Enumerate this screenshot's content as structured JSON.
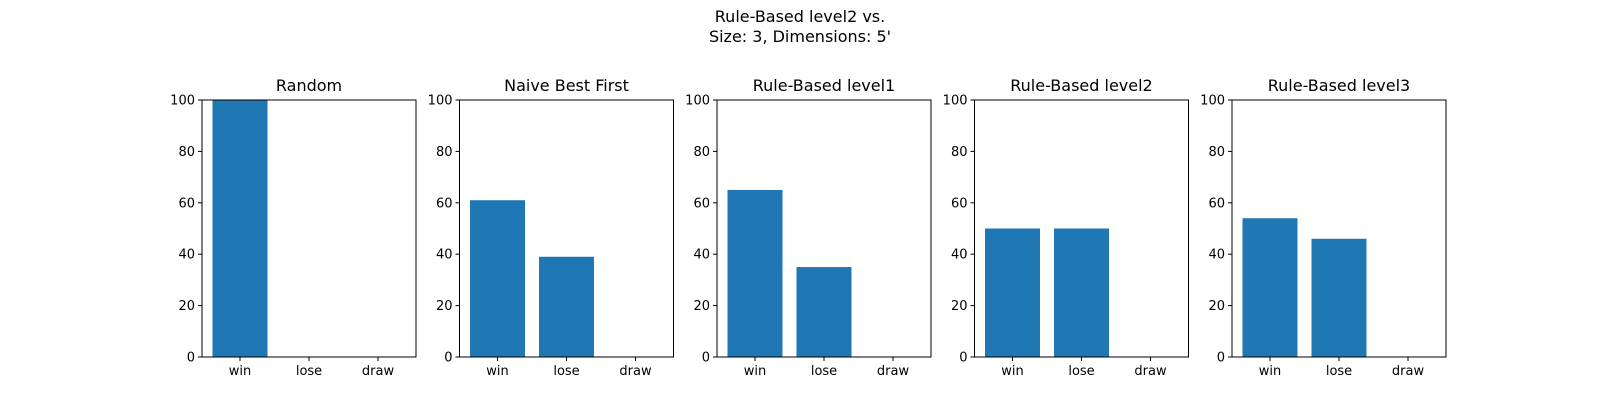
{
  "figure": {
    "title_line1": "Rule-Based level2 vs.",
    "title_line2": "Size: 3, Dimensions: 5'"
  },
  "chart_data": [
    {
      "type": "bar",
      "title": "Random",
      "categories": [
        "win",
        "lose",
        "draw"
      ],
      "values": [
        100,
        0,
        0
      ],
      "ylim": [
        0,
        100
      ],
      "yticks": [
        0,
        20,
        40,
        60,
        80,
        100
      ],
      "color": "#1f77b4",
      "grid": false
    },
    {
      "type": "bar",
      "title": "Naive Best First",
      "categories": [
        "win",
        "lose",
        "draw"
      ],
      "values": [
        61,
        39,
        0
      ],
      "ylim": [
        0,
        100
      ],
      "yticks": [
        0,
        20,
        40,
        60,
        80,
        100
      ],
      "color": "#1f77b4",
      "grid": false
    },
    {
      "type": "bar",
      "title": "Rule-Based level1",
      "categories": [
        "win",
        "lose",
        "draw"
      ],
      "values": [
        65,
        35,
        0
      ],
      "ylim": [
        0,
        100
      ],
      "yticks": [
        0,
        20,
        40,
        60,
        80,
        100
      ],
      "color": "#1f77b4",
      "grid": false
    },
    {
      "type": "bar",
      "title": "Rule-Based level2",
      "categories": [
        "win",
        "lose",
        "draw"
      ],
      "values": [
        50,
        50,
        0
      ],
      "ylim": [
        0,
        100
      ],
      "yticks": [
        0,
        20,
        40,
        60,
        80,
        100
      ],
      "color": "#1f77b4",
      "grid": false
    },
    {
      "type": "bar",
      "title": "Rule-Based level3",
      "categories": [
        "win",
        "lose",
        "draw"
      ],
      "values": [
        54,
        46,
        0
      ],
      "ylim": [
        0,
        100
      ],
      "yticks": [
        0,
        20,
        40,
        60,
        80,
        100
      ],
      "color": "#1f77b4",
      "grid": false
    }
  ]
}
